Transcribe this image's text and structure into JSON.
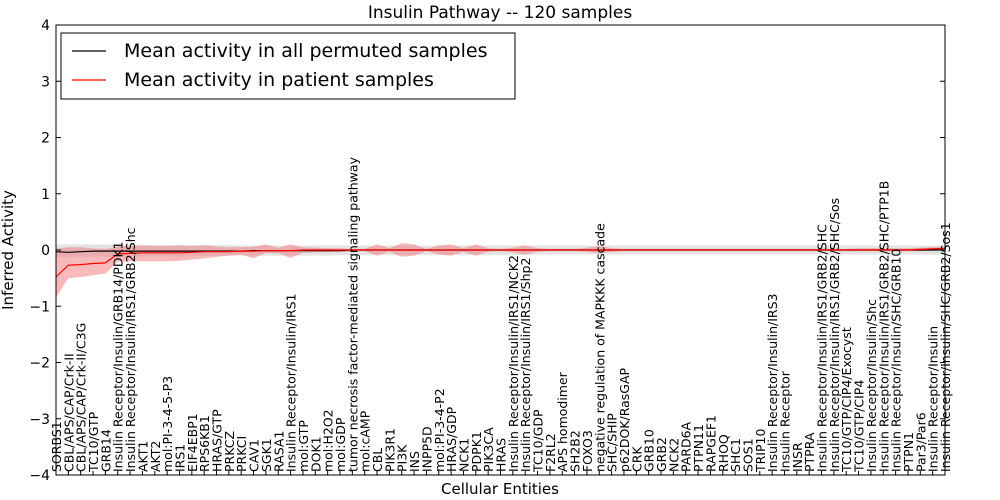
{
  "chart_data": {
    "type": "line",
    "title": "Insulin Pathway -- 120 samples",
    "xlabel": "Cellular Entities",
    "ylabel": "Inferred Activity",
    "ylim": [
      -4,
      4
    ],
    "yticks": [
      -4,
      -3,
      -2,
      -1,
      0,
      1,
      2,
      3,
      4
    ],
    "grid": false,
    "legend_location": "top-left",
    "colors": {
      "permuted": "#000000",
      "patient": "#ff0000",
      "patient_band": "#f08080",
      "permuted_band": "#b0b0b0"
    },
    "categories": [
      "SORBS1",
      "CBL/APS/CAP/Crk-II",
      "CBL/APS/CAP/Crk-II/C3G",
      "TC10/GTP",
      "GRB14",
      "Insulin Receptor/Insulin/GRB14/PDK1",
      "Insulin Receptor/Insulin/IRS1/GRB2/Shc",
      "AKT1",
      "AKT2",
      "mol:PI-3-4-5-P3",
      "IRS1",
      "EIF4EBP1",
      "RPS6KB1",
      "HRAS/GTP",
      "PRKCZ",
      "PRKCI",
      "CAV1",
      "SGK1",
      "RASA1",
      "Insulin Receptor/Insulin/IRS1",
      "mol:GTP",
      "DOK1",
      "mol:H2O2",
      "mol:GDP",
      "tumor necrosis factor-mediated signaling pathway",
      "mol:cAMP",
      "CBL",
      "PIK3R1",
      "PI3K",
      "INS",
      "INPP5D",
      "mol:PI-3-4-P2",
      "HRAS/GDP",
      "NCK1",
      "PDPK1",
      "PIK3CA",
      "HRAS",
      "Insulin Receptor/Insulin/IRS1/NCK2",
      "Insulin Receptor/Insulin/IRS1/Shp2",
      "TC10/GDP",
      "F2RL2",
      "APS homodimer",
      "SH2B2",
      "FOXO3",
      "negative regulation of MAPKKK cascade",
      "SHC/SHIP",
      "p62DOK/RasGAP",
      "CRK",
      "GRB10",
      "GRB2",
      "NCK2",
      "PARD6A",
      "PTPN11",
      "RAPGEF1",
      "RHOQ",
      "SHC1",
      "SOS1",
      "TRIP10",
      "Insulin Receptor/Insulin/IRS3",
      "Insulin Receptor",
      "INSR",
      "PTPRA",
      "Insulin Receptor/Insulin/IRS1/GRB2/SHC",
      "Insulin Receptor/Insulin/IRS1/GRB2/SHC/Sos",
      "TC10/GTP/CIP4/Exocyst",
      "TC10/GTP/CIP4",
      "Insulin Receptor/Insulin/Shc",
      "Insulin Receptor/Insulin/IRS1/GRB2/SHC/PTP1B",
      "Insulin Receptor/Insulin/SHC/GRB10",
      "PTPN1",
      "Par3/Par6",
      "Insulin Receptor/Insulin",
      "Insulin Receptor/Insulin/SHC/GRB2/Sos1"
    ],
    "series": [
      {
        "name": "Mean activity in all permuted samples",
        "values": [
          -0.03,
          -0.04,
          -0.03,
          -0.02,
          -0.02,
          -0.02,
          -0.02,
          -0.02,
          -0.02,
          -0.02,
          -0.02,
          -0.02,
          -0.02,
          -0.02,
          -0.02,
          -0.02,
          -0.01,
          -0.01,
          -0.01,
          -0.01,
          -0.01,
          -0.01,
          -0.01,
          -0.01,
          0,
          0,
          0,
          0,
          0,
          0,
          0,
          0,
          0,
          0,
          0,
          0,
          0,
          0,
          0,
          0,
          0,
          0,
          0,
          0,
          0,
          0,
          0,
          0,
          0,
          0,
          0,
          0,
          0,
          0,
          0,
          0,
          0,
          0,
          0,
          0,
          0,
          0,
          0,
          0,
          0,
          0,
          0,
          0,
          0,
          0,
          0,
          0,
          0
        ],
        "band_low": [
          -0.13,
          -0.12,
          -0.12,
          -0.12,
          -0.12,
          -0.12,
          -0.12,
          -0.11,
          -0.11,
          -0.11,
          -0.11,
          -0.11,
          -0.1,
          -0.1,
          -0.1,
          -0.1,
          -0.1,
          -0.1,
          -0.1,
          -0.1,
          -0.1,
          -0.1,
          -0.1,
          -0.09,
          -0.09,
          -0.09,
          -0.09,
          -0.09,
          -0.09,
          -0.09,
          -0.09,
          -0.09,
          -0.09,
          -0.09,
          -0.09,
          -0.09,
          -0.09,
          -0.09,
          -0.09,
          -0.08,
          -0.08,
          -0.08,
          -0.08,
          -0.08,
          -0.08,
          -0.08,
          -0.08,
          -0.08,
          -0.08,
          -0.08,
          -0.08,
          -0.08,
          -0.08,
          -0.08,
          -0.08,
          -0.08,
          -0.08,
          -0.08,
          -0.08,
          -0.08,
          -0.08,
          -0.08,
          -0.08,
          -0.08,
          -0.08,
          -0.08,
          -0.08,
          -0.08,
          -0.08,
          -0.08,
          -0.08,
          -0.08,
          -0.08
        ],
        "band_high": [
          0.1,
          0.1,
          0.1,
          0.1,
          0.1,
          0.1,
          0.1,
          0.09,
          0.09,
          0.09,
          0.09,
          0.09,
          0.09,
          0.09,
          0.09,
          0.08,
          0.08,
          0.08,
          0.08,
          0.08,
          0.08,
          0.08,
          0.08,
          0.08,
          0.08,
          0.08,
          0.08,
          0.08,
          0.08,
          0.08,
          0.08,
          0.08,
          0.08,
          0.08,
          0.08,
          0.08,
          0.08,
          0.08,
          0.08,
          0.08,
          0.08,
          0.08,
          0.08,
          0.08,
          0.08,
          0.08,
          0.08,
          0.08,
          0.08,
          0.08,
          0.08,
          0.08,
          0.08,
          0.08,
          0.08,
          0.08,
          0.08,
          0.08,
          0.08,
          0.08,
          0.08,
          0.08,
          0.08,
          0.08,
          0.08,
          0.08,
          0.08,
          0.08,
          0.08,
          0.08,
          0.08,
          0.08,
          0.08
        ]
      },
      {
        "name": "Mean activity in patient samples",
        "values": [
          -0.48,
          -0.27,
          -0.26,
          -0.24,
          -0.23,
          -0.07,
          -0.06,
          -0.05,
          -0.05,
          -0.05,
          -0.05,
          -0.04,
          -0.03,
          -0.03,
          -0.03,
          -0.02,
          -0.02,
          -0.01,
          -0.01,
          -0.01,
          0,
          0,
          0,
          0,
          0,
          0,
          0,
          0,
          0,
          0,
          0,
          0,
          0,
          0,
          0,
          0,
          0,
          0,
          0,
          0,
          0,
          0,
          0,
          0,
          0,
          0,
          0,
          0,
          0,
          0,
          0,
          0,
          0,
          0,
          0,
          0,
          0,
          0,
          0,
          0,
          0,
          0,
          0,
          0,
          0,
          0,
          0,
          0,
          0,
          0,
          0.01,
          0.02,
          0.03
        ],
        "band_low": [
          -0.85,
          -0.5,
          -0.48,
          -0.45,
          -0.42,
          -0.21,
          -0.2,
          -0.2,
          -0.2,
          -0.2,
          -0.19,
          -0.17,
          -0.15,
          -0.12,
          -0.1,
          -0.08,
          -0.15,
          -0.05,
          -0.06,
          -0.14,
          -0.05,
          -0.04,
          -0.04,
          -0.03,
          -0.03,
          -0.02,
          -0.1,
          -0.03,
          -0.12,
          -0.1,
          -0.02,
          -0.08,
          -0.1,
          -0.03,
          -0.1,
          -0.03,
          -0.02,
          -0.04,
          -0.08,
          -0.03,
          -0.02,
          -0.02,
          -0.02,
          -0.03,
          -0.06,
          -0.03,
          -0.02,
          -0.02,
          -0.02,
          -0.02,
          -0.02,
          -0.02,
          -0.02,
          -0.02,
          -0.02,
          -0.02,
          -0.02,
          -0.02,
          -0.02,
          -0.02,
          -0.02,
          -0.02,
          -0.02,
          -0.02,
          -0.02,
          -0.02,
          -0.02,
          -0.02,
          -0.02,
          -0.02,
          -0.02,
          -0.01,
          0
        ],
        "band_high": [
          0.02,
          0.05,
          0.05,
          0.03,
          0.02,
          0.06,
          0.07,
          0.08,
          0.07,
          0.07,
          0.08,
          0.07,
          0.08,
          0.06,
          0.05,
          0.05,
          0.06,
          0.1,
          0.04,
          0.1,
          0.05,
          0.04,
          0.03,
          0.03,
          0.02,
          0.02,
          0.1,
          0.03,
          0.12,
          0.1,
          0.02,
          0.08,
          0.1,
          0.03,
          0.1,
          0.03,
          0.02,
          0.04,
          0.08,
          0.03,
          0.02,
          0.02,
          0.02,
          0.04,
          0.07,
          0.03,
          0.02,
          0.02,
          0.02,
          0.02,
          0.02,
          0.02,
          0.02,
          0.02,
          0.02,
          0.02,
          0.02,
          0.02,
          0.02,
          0.02,
          0.02,
          0.02,
          0.02,
          0.02,
          0.02,
          0.03,
          0.03,
          0.03,
          0.03,
          0.03,
          0.04,
          0.05,
          0.06
        ]
      }
    ]
  }
}
